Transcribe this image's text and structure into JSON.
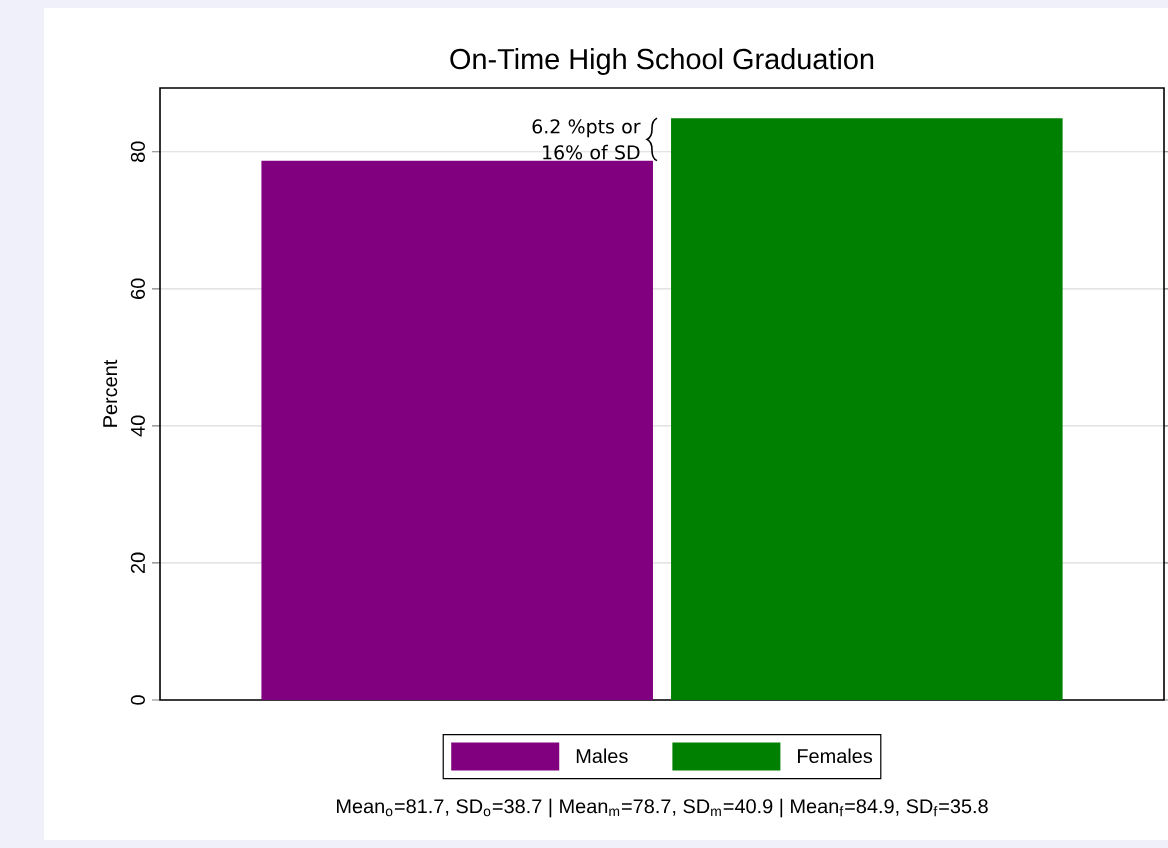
{
  "chart_data": {
    "type": "bar",
    "title": "On-Time High School Graduation",
    "ylabel": "Percent",
    "categories": [
      null
    ],
    "series": [
      {
        "name": "Males",
        "color": "#800080",
        "values": [
          78.7
        ]
      },
      {
        "name": "Females",
        "color": "#008000",
        "values": [
          84.9
        ]
      }
    ],
    "ylim": [
      0,
      89.3
    ],
    "yticks": [
      0,
      20,
      40,
      60,
      80
    ],
    "grid": "y",
    "legend": "bottom",
    "annotations": [
      "6.2 %pts or 16% of SD",
      "Mean$_{o}$=81.7, SD$_{o}$=38.7 | Mean$_{m}$=78.7, SD$_{m}$=40.9 | Mean$_{f}$=84.9, SD$_{f}$=35.8"
    ]
  }
}
